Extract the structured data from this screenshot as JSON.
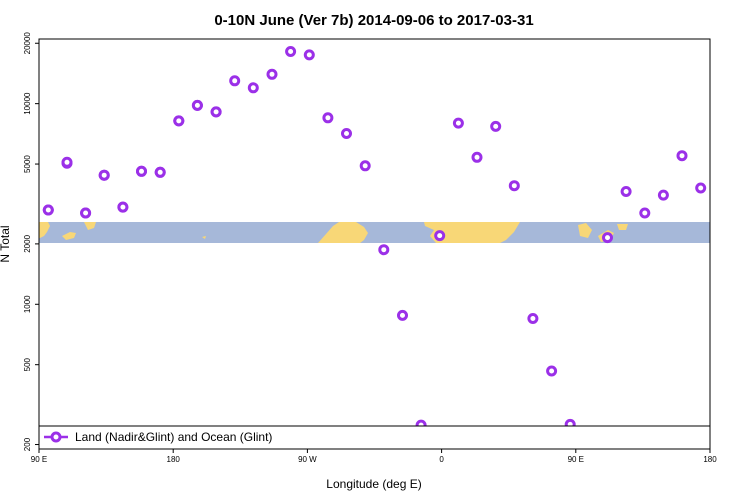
{
  "chart_data": {
    "type": "scatter",
    "title": "0-10N June (Ver 7b)   2014-09-06 to 2017-03-31",
    "xlabel": "Longitude (deg E)",
    "ylabel": "N Total",
    "y_scale": "log",
    "ylim": [
      190,
      21000
    ],
    "x_ticks": [
      "90 E",
      "180",
      "90 W",
      "0",
      "90 E",
      "180"
    ],
    "y_ticks": [
      "200",
      "500",
      "1000",
      "2000",
      "5000",
      "10000",
      "20000"
    ],
    "grid": false,
    "legend_placement": "bottom-left",
    "colors": {
      "marker": "#9b30e8",
      "ocean": "#a6b8d9",
      "land": "#f8d777"
    },
    "series": [
      {
        "name": "Land (Nadir&Glint) and Ocean (Glint)",
        "x": [
          95,
          105,
          115,
          125,
          135,
          145,
          155,
          165,
          175,
          185,
          195,
          205,
          215,
          225,
          235,
          245,
          255,
          265,
          275,
          285,
          295,
          305,
          315,
          325,
          335,
          345,
          355,
          5,
          15,
          25,
          35,
          45,
          55,
          65,
          75,
          85,
          95,
          105,
          115,
          125,
          135,
          145,
          155,
          165,
          175,
          185
        ],
        "y": [
          2950,
          5050,
          2850,
          4400,
          3050,
          4600,
          4550,
          8200,
          9800,
          9100,
          13000,
          12000,
          14000,
          18200,
          17500,
          8500,
          7100,
          4900,
          1870,
          880,
          250,
          2200,
          8000,
          5400,
          7700,
          3900,
          850,
          465,
          252,
          214,
          2150,
          3650,
          2850,
          3500,
          5500,
          3800,
          2950,
          5100,
          2850,
          4400,
          3050,
          4600,
          4550,
          8200,
          9800,
          9100
        ]
      }
    ]
  }
}
